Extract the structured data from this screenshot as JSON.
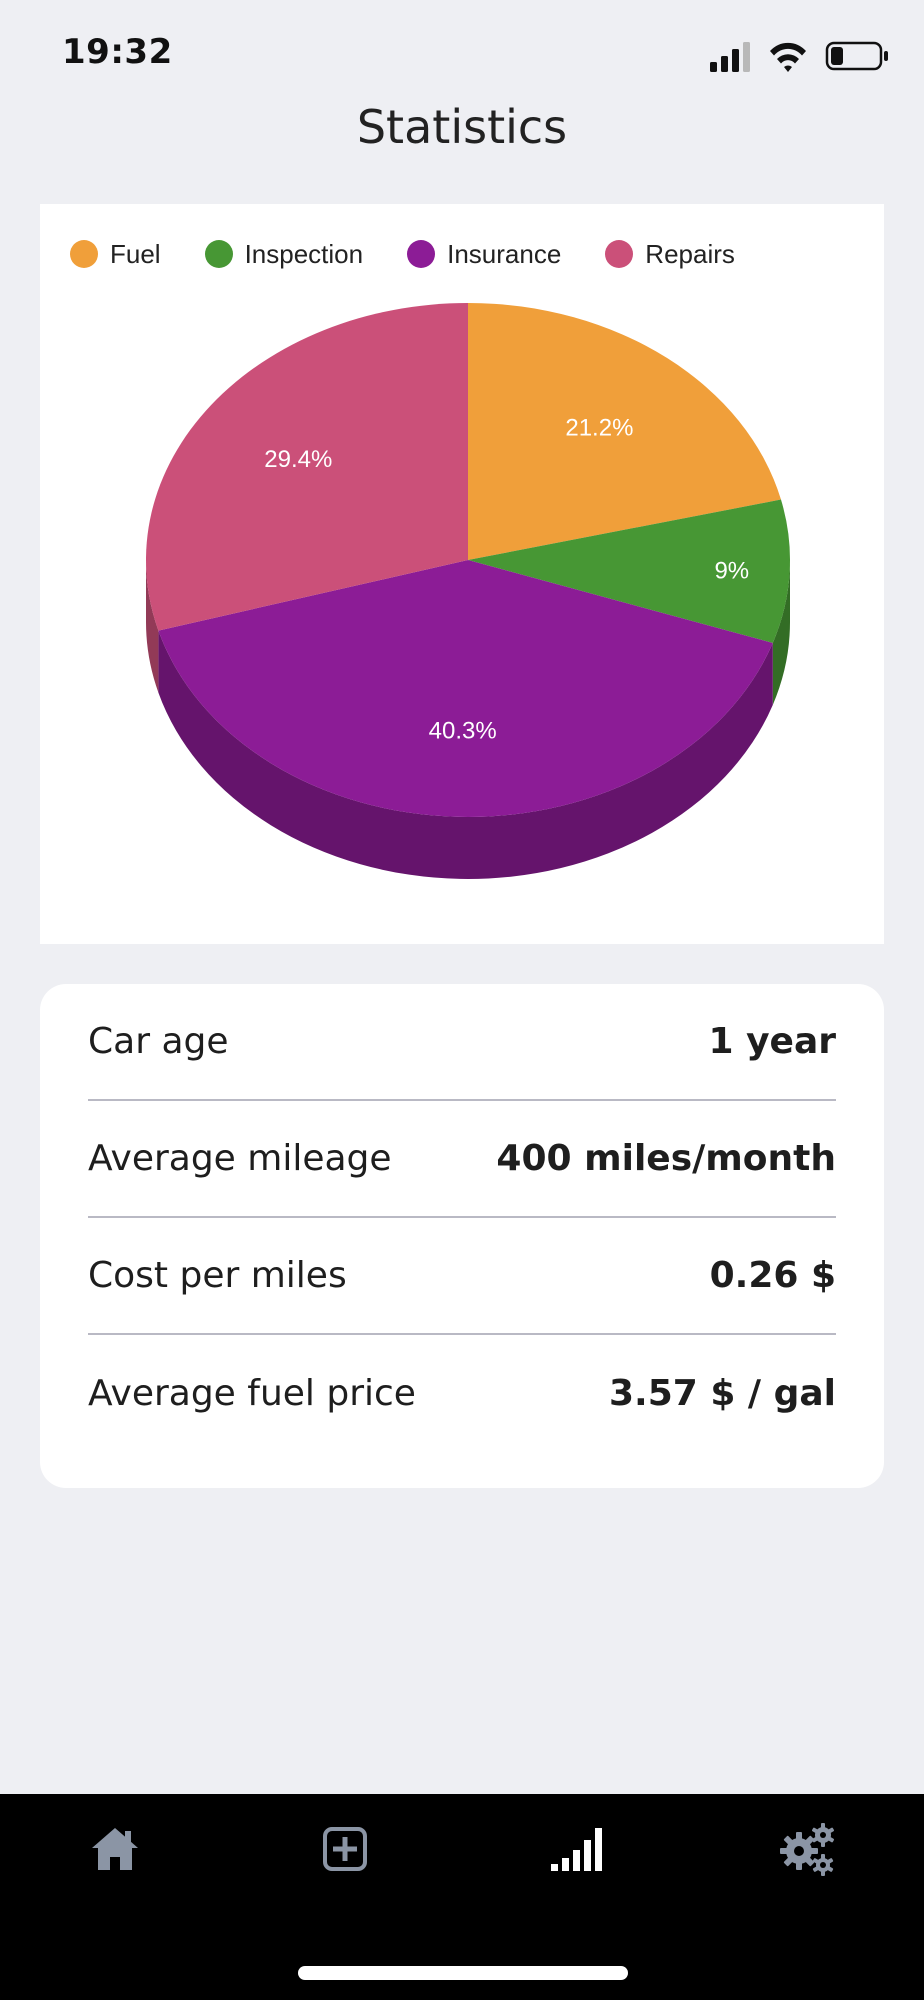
{
  "status_bar": {
    "time": "19:32"
  },
  "header": {
    "title": "Statistics"
  },
  "chart_data": {
    "type": "pie",
    "title": "",
    "legend_position": "top-left",
    "slices": [
      {
        "label": "Fuel",
        "value": 21.2,
        "display": "21.2%",
        "color": "#f09f3a"
      },
      {
        "label": "Inspection",
        "value": 9,
        "display": "9%",
        "color": "#479734"
      },
      {
        "label": "Insurance",
        "value": 40.3,
        "display": "40.3%",
        "color": "#8c1c96"
      },
      {
        "label": "Repairs",
        "value": 29.4,
        "display": "29.4%",
        "color": "#cb5079"
      }
    ]
  },
  "stats": [
    {
      "label": "Car age",
      "value": "1 year"
    },
    {
      "label": "Average mileage",
      "value": "400 miles/month"
    },
    {
      "label": "Cost per miles",
      "value": "0.26 $"
    },
    {
      "label": "Average fuel price",
      "value": "3.57 $ / gal"
    }
  ],
  "tab_bar": {
    "tabs": [
      {
        "icon": "home-icon",
        "color": "#8b95a5"
      },
      {
        "icon": "add-square-icon",
        "color": "#8b95a5"
      },
      {
        "icon": "statistics-bars-icon",
        "color": "#ffffff",
        "active": true
      },
      {
        "icon": "settings-gears-icon",
        "color": "#8b95a5"
      }
    ]
  }
}
